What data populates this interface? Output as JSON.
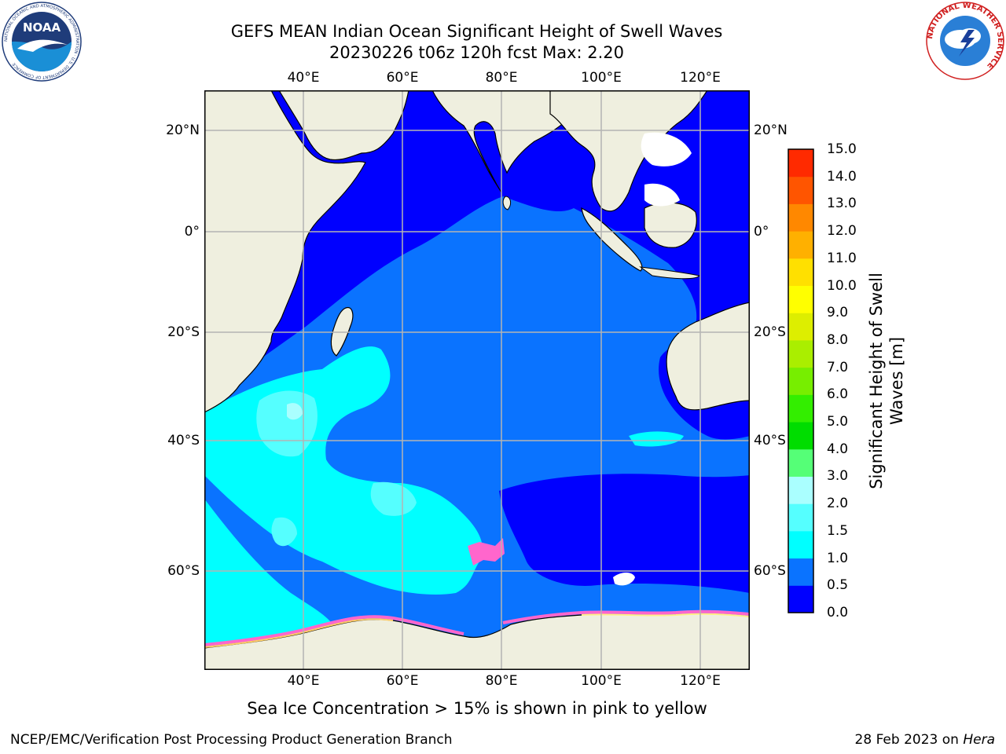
{
  "title": {
    "line1": "GEFS MEAN Indian Ocean Significant Height of Swell Waves",
    "line2": "20230226 t06z 120h fcst   Max: 2.20"
  },
  "map": {
    "lon_range": [
      20,
      130
    ],
    "lat_range": [
      -74,
      28
    ],
    "lon_ticks": [
      "40°E",
      "60°E",
      "80°E",
      "100°E",
      "120°E"
    ],
    "lat_ticks": [
      "20°N",
      "0°",
      "20°S",
      "40°S",
      "60°S"
    ],
    "colors": {
      "land": "#efefdf",
      "ocean_0_0_5": "#0000ff",
      "ocean_0_5_1_0": "#0a73ff",
      "ocean_1_0_1_5": "#00ffff",
      "ocean_1_5_2_0": "#55ffff",
      "ocean_2_0_3_0": "#aaffff",
      "gridline": "#b4b4b4",
      "sea_ice": "#ff66cc"
    }
  },
  "colorbar": {
    "title": "Significant Height of Swell Waves [m]",
    "title_line1": "Significant Height of Swell",
    "title_line2": "Waves [m]",
    "labels": [
      "0.0",
      "0.5",
      "1.0",
      "1.5",
      "2.0",
      "3.0",
      "4.0",
      "5.0",
      "6.0",
      "7.0",
      "8.0",
      "9.0",
      "10.0",
      "11.0",
      "12.0",
      "13.0",
      "14.0",
      "15.0"
    ],
    "colors": [
      "#0000ff",
      "#0a73ff",
      "#00ffff",
      "#55ffff",
      "#aaffff",
      "#55ff77",
      "#00dd00",
      "#33ee00",
      "#77ee00",
      "#aaee00",
      "#ddee00",
      "#ffff00",
      "#ffe000",
      "#ffb000",
      "#ff8800",
      "#ff5500",
      "#ff2a00",
      "#ff0000"
    ]
  },
  "note": "Sea Ice Concentration > 15% is shown in pink to yellow",
  "footer": {
    "left": "NCEP/EMC/Verification Post Processing Product Generation Branch",
    "right_prefix": "28 Feb 2023 on ",
    "right_machine": "Hera"
  },
  "logos": {
    "noaa_text": "NOAA",
    "noaa_ring": "NATIONAL OCEANIC AND ATMOSPHERIC ADMINISTRATION · U.S. DEPARTMENT OF COMMERCE",
    "nws_ring": "NATIONAL WEATHER SERVICE"
  }
}
